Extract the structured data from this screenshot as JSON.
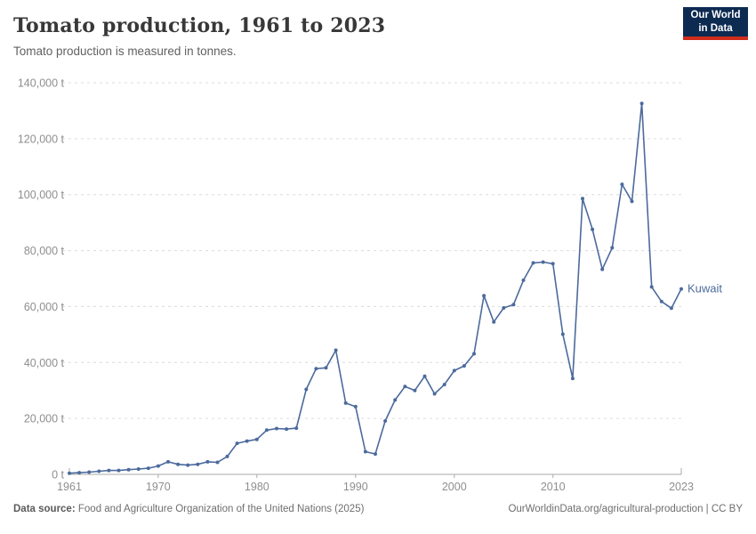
{
  "header": {
    "title": "Tomato production, 1961 to 2023",
    "subtitle": "Tomato production is measured in tonnes.",
    "logo": {
      "line1": "Our World",
      "line2": "in Data"
    }
  },
  "footer": {
    "source_label": "Data source:",
    "source_text": "Food and Agriculture Organization of the United Nations (2025)",
    "attribution": "OurWorldinData.org/agricultural-production | CC BY"
  },
  "colors": {
    "line": "#4c6a9c",
    "grid": "#dcdcdc",
    "axis": "#a9a9a9",
    "tick_text": "#8e8e8e",
    "logo_bg": "#0d2a51",
    "logo_red": "#cf2d1c"
  },
  "chart_data": {
    "type": "line",
    "title": "Tomato production, 1961 to 2023",
    "subtitle": "Tomato production is measured in tonnes.",
    "xlabel": "",
    "ylabel": "tonnes",
    "xlim": [
      1961,
      2023
    ],
    "ylim": [
      0,
      140000
    ],
    "x_ticks": [
      1961,
      1970,
      1980,
      1990,
      2000,
      2010,
      2023
    ],
    "y_ticks": [
      0,
      20000,
      40000,
      60000,
      80000,
      100000,
      120000,
      140000
    ],
    "y_tick_suffix": " t",
    "grid": "horizontal-dashed",
    "legend_position": "end-of-line",
    "series": [
      {
        "name": "Kuwait",
        "color": "#4c6a9c",
        "x": [
          1961,
          1962,
          1963,
          1964,
          1965,
          1966,
          1967,
          1968,
          1969,
          1970,
          1971,
          1972,
          1973,
          1974,
          1975,
          1976,
          1977,
          1978,
          1979,
          1980,
          1981,
          1982,
          1983,
          1984,
          1985,
          1986,
          1987,
          1988,
          1989,
          1990,
          1991,
          1992,
          1993,
          1994,
          1995,
          1996,
          1997,
          1998,
          1999,
          2000,
          2001,
          2002,
          2003,
          2004,
          2005,
          2006,
          2007,
          2008,
          2009,
          2010,
          2011,
          2012,
          2013,
          2014,
          2015,
          2016,
          2017,
          2018,
          2019,
          2020,
          2021,
          2022,
          2023
        ],
        "values": [
          400,
          600,
          800,
          1100,
          1400,
          1400,
          1700,
          1900,
          2200,
          3000,
          4500,
          3600,
          3300,
          3600,
          4500,
          4300,
          6400,
          11100,
          11900,
          12500,
          15800,
          16400,
          16200,
          16500,
          30400,
          37800,
          38100,
          44400,
          25500,
          24200,
          8100,
          7300,
          19100,
          26600,
          31400,
          30000,
          35100,
          28800,
          32100,
          37100,
          38800,
          43100,
          63900,
          54500,
          59500,
          60700,
          69400,
          75600,
          75900,
          75300,
          50100,
          34300,
          98600,
          87600,
          73300,
          81000,
          103700,
          97600,
          132600,
          67000,
          61800,
          59400,
          66300
        ]
      }
    ]
  }
}
